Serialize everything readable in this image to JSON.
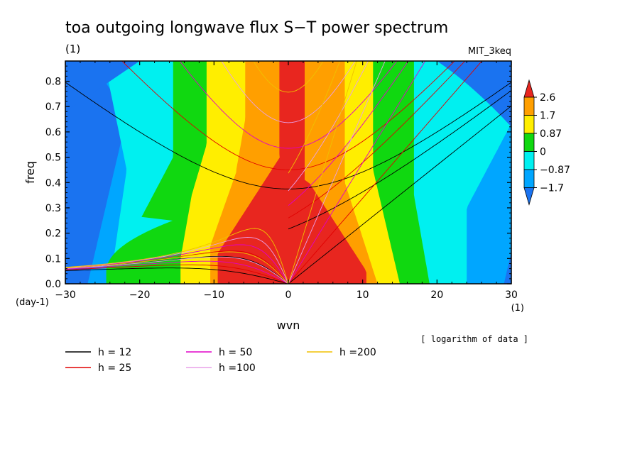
{
  "chart_data": {
    "type": "heatmap",
    "title": "toa outgoing longwave flux S−T power spectrum",
    "subtitle": "(1)",
    "dataset": "MIT_3keq",
    "xlabel": "wvn",
    "ylabel": "freq",
    "x_unit": "(1)",
    "y_unit": "(day-1)",
    "xlim": [
      -30,
      30
    ],
    "ylim": [
      0,
      0.88
    ],
    "x_ticks": [
      -30,
      -20,
      -10,
      0,
      10,
      20,
      30
    ],
    "y_ticks": [
      0.0,
      0.1,
      0.2,
      0.3,
      0.4,
      0.5,
      0.6,
      0.7,
      0.8
    ],
    "x_tick_labels": [
      "−30",
      "−20",
      "−10",
      "0",
      "10",
      "20",
      "30"
    ],
    "y_tick_labels": [
      "0.0",
      "0.1",
      "0.2",
      "0.3",
      "0.4",
      "0.5",
      "0.6",
      "0.7",
      "0.8"
    ],
    "note": "[ logarithm of data ]",
    "colorbar": {
      "labels": [
        "2.6",
        "1.7",
        "0.87",
        "0",
        "−0.87",
        "−1.7"
      ],
      "levels": [
        2.6,
        1.7,
        0.87,
        0,
        -0.87,
        -1.7
      ],
      "colors": [
        "#e8261f",
        "#ff9f00",
        "#ffee00",
        "#10d810",
        "#00f0f0",
        "#00a6ff",
        "#1a73f0"
      ]
    },
    "dispersion_curves": [
      {
        "label": "h = 12",
        "h": 12,
        "color": "#000000"
      },
      {
        "label": "h = 25",
        "h": 25,
        "color": "#e00000"
      },
      {
        "label": "h = 50",
        "h": 50,
        "color": "#e000c8"
      },
      {
        "label": "h =100",
        "h": 100,
        "color": "#e8a0e8"
      },
      {
        "label": "h =200",
        "h": 200,
        "color": "#f0c000"
      }
    ]
  }
}
